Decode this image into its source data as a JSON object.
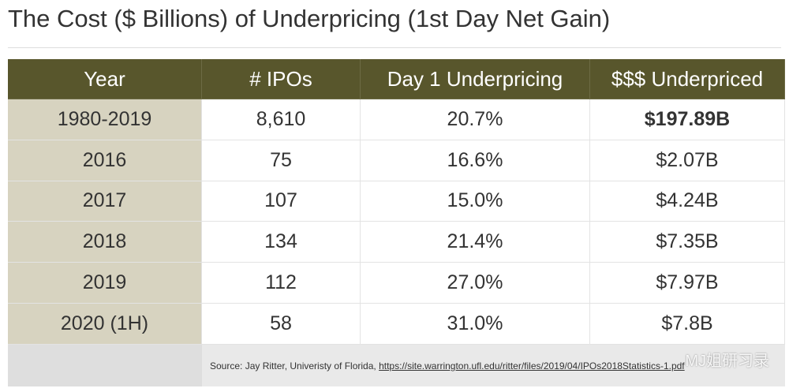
{
  "title": "The Cost ($ Billions) of Underpricing (1st Day Net Gain)",
  "table": {
    "header": [
      "Year",
      "# IPOs",
      "Day 1 Underpricing",
      "$$$ Underpriced"
    ],
    "rows": [
      [
        "1980-2019",
        "8,610",
        "20.7%",
        "$197.89B"
      ],
      [
        "2016",
        "75",
        "16.6%",
        "$2.07B"
      ],
      [
        "2017",
        "107",
        "15.0%",
        "$4.24B"
      ],
      [
        "2018",
        "134",
        "21.4%",
        "$7.35B"
      ],
      [
        "2019",
        "112",
        "27.0%",
        "$7.97B"
      ],
      [
        "2020 (1H)",
        "58",
        "31.0%",
        "$7.8B"
      ]
    ]
  },
  "source": {
    "text": "Source: Jay Ritter, Univeristy of Florida,",
    "link": "https://site.warrington.ufl.edu/ritter/files/2019/04/IPOs2018Statistics-1.pdf"
  },
  "watermark": "MJ姐研习录"
}
